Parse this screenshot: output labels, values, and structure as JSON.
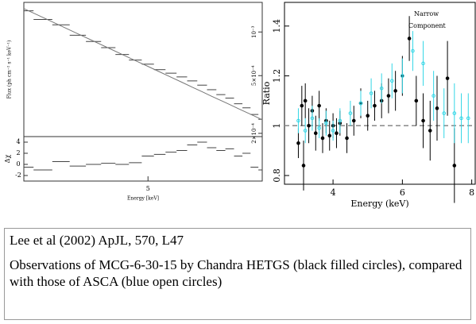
{
  "chart_data": [
    {
      "type": "step",
      "log_x": true,
      "log_y": true,
      "color": "#444",
      "model_color": "#777",
      "xlabel": "Energy [keV]",
      "ylabel": "Flux (ph cm⁻² s⁻¹ keV⁻¹)",
      "xlim": [
        3,
        8
      ],
      "xticks": [
        5
      ],
      "ylim": [
        0.00019,
        0.0016
      ],
      "yticks": [
        {
          "value": 0.001,
          "label": "10⁻³"
        },
        {
          "value": 0.0005,
          "label": "5×10⁻⁴"
        },
        {
          "value": 0.0002,
          "label": "2×10⁻⁴"
        }
      ],
      "x": [
        3.0,
        3.25,
        3.5,
        3.75,
        4.0,
        4.25,
        4.5,
        4.75,
        5.0,
        5.25,
        5.5,
        5.75,
        6.0,
        6.25,
        6.5,
        6.75,
        7.0,
        7.25,
        7.5,
        7.75,
        8.0
      ],
      "data": [
        0.0014,
        0.00122,
        0.00112,
        0.00095,
        0.00086,
        0.00078,
        0.0007,
        0.00064,
        0.0006,
        0.00055,
        0.00052,
        0.00049,
        0.00046,
        0.00043,
        0.0004,
        0.00037,
        0.00035,
        0.00032,
        0.0003,
        0.00027,
        0.00025
      ],
      "model": [
        0.00145,
        0.001256,
        0.001099,
        0.00097,
        0.000864,
        0.000775,
        0.000699,
        0.000634,
        0.000579,
        0.00053,
        0.000487,
        0.00045,
        0.000416,
        0.000387,
        0.00036,
        0.000337,
        0.000316,
        0.000296,
        0.000279,
        0.000263,
        0.000248
      ],
      "residuals": {
        "ylabel": "Δχ",
        "ylim": [
          -3,
          5
        ],
        "yticks": [
          -2,
          0,
          2,
          4
        ],
        "values": [
          -0.5,
          -1,
          0.5,
          -0.3,
          0,
          0.2,
          0,
          0.3,
          1.5,
          1.8,
          2.2,
          2.5,
          3.5,
          4,
          3,
          2.5,
          2.8,
          1.5,
          2,
          -0.5,
          -1
        ]
      }
    },
    {
      "type": "errorbar",
      "xlabel": "Energy (keV)",
      "ylabel": "Ratio",
      "xlim": [
        2.6,
        8.1
      ],
      "xticks": [
        4,
        6,
        8
      ],
      "ylim": [
        0.765,
        1.495
      ],
      "yticks": [
        0.8,
        1,
        1.2,
        1.4
      ],
      "reference_line": 1,
      "annotation_lines": [
        "Narrow",
        "Component"
      ],
      "series": [
        {
          "color": "#000000",
          "marker": "filled",
          "x": [
            3.0,
            3.1,
            3.15,
            3.2,
            3.3,
            3.4,
            3.5,
            3.6,
            3.7,
            3.8,
            3.9,
            4.0,
            4.1,
            4.2,
            4.4,
            4.6,
            4.8,
            5.0,
            5.2,
            5.4,
            5.6,
            5.8,
            6.0,
            6.2,
            6.4,
            6.6,
            6.8,
            7.0,
            7.3,
            7.5
          ],
          "values": [
            0.93,
            1.08,
            0.84,
            1.1,
            1.0,
            1.06,
            0.97,
            1.08,
            0.95,
            1.02,
            0.96,
            1.0,
            0.97,
            1.01,
            0.95,
            1.02,
            1.09,
            1.04,
            1.08,
            1.1,
            1.12,
            1.14,
            1.2,
            1.35,
            1.1,
            1.02,
            0.98,
            1.07,
            1.19,
            0.84
          ],
          "errors": [
            0.06,
            0.08,
            0.1,
            0.07,
            0.07,
            0.06,
            0.07,
            0.06,
            0.06,
            0.05,
            0.06,
            0.05,
            0.06,
            0.05,
            0.06,
            0.06,
            0.06,
            0.06,
            0.06,
            0.07,
            0.07,
            0.08,
            0.08,
            0.09,
            0.1,
            0.11,
            0.12,
            0.13,
            0.15,
            0.15
          ]
        },
        {
          "color": "#33d6e6",
          "marker": "open",
          "x": [
            3.0,
            3.2,
            3.4,
            3.6,
            3.8,
            4.0,
            4.2,
            4.5,
            4.8,
            5.1,
            5.4,
            5.7,
            6.0,
            6.3,
            6.6,
            6.9,
            7.2,
            7.5,
            7.7,
            7.9
          ],
          "values": [
            1.02,
            0.98,
            1.03,
            0.99,
            1.01,
            0.98,
            1.02,
            1.05,
            1.09,
            1.13,
            1.15,
            1.18,
            1.2,
            1.3,
            1.25,
            1.12,
            1.05,
            1.05,
            1.03,
            1.03
          ],
          "errors": [
            0.05,
            0.05,
            0.05,
            0.04,
            0.05,
            0.04,
            0.05,
            0.05,
            0.05,
            0.06,
            0.06,
            0.07,
            0.07,
            0.08,
            0.09,
            0.1,
            0.1,
            0.12,
            0.1,
            0.1
          ]
        }
      ]
    }
  ],
  "caption": {
    "citation": "Lee et al (2002) ApJL, 570, L47",
    "text": "Observations of MCG-6-30-15 by Chandra HETGS (black filled circles), compared with those of ASCA (blue open circles)"
  }
}
